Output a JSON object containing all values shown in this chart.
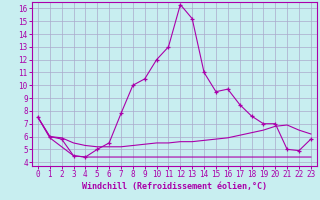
{
  "xlabel": "Windchill (Refroidissement éolien,°C)",
  "background_color": "#c8eef0",
  "grid_color": "#aaaacc",
  "line_color": "#aa00aa",
  "hours": [
    0,
    1,
    2,
    3,
    4,
    5,
    6,
    7,
    8,
    9,
    10,
    11,
    12,
    13,
    14,
    15,
    16,
    17,
    18,
    19,
    20,
    21,
    22,
    23
  ],
  "windchill": [
    7.5,
    6.0,
    5.8,
    4.5,
    4.4,
    5.0,
    5.5,
    7.8,
    10.0,
    10.5,
    12.0,
    13.0,
    16.3,
    15.2,
    11.0,
    9.5,
    9.7,
    8.5,
    7.6,
    7.0,
    7.0,
    5.0,
    4.9,
    5.8
  ],
  "line_flat": [
    7.5,
    5.9,
    5.2,
    4.5,
    4.4,
    4.4,
    4.4,
    4.4,
    4.4,
    4.4,
    4.4,
    4.4,
    4.4,
    4.4,
    4.4,
    4.4,
    4.4,
    4.4,
    4.4,
    4.4,
    4.4,
    4.4,
    4.4,
    4.4
  ],
  "line_mid": [
    7.5,
    6.0,
    5.9,
    5.5,
    5.3,
    5.2,
    5.2,
    5.2,
    5.3,
    5.4,
    5.5,
    5.5,
    5.6,
    5.6,
    5.7,
    5.8,
    5.9,
    6.1,
    6.3,
    6.5,
    6.8,
    6.9,
    6.5,
    6.2
  ],
  "ylim_min": 4,
  "ylim_max": 16,
  "yticks": [
    4,
    5,
    6,
    7,
    8,
    9,
    10,
    11,
    12,
    13,
    14,
    15,
    16
  ],
  "xlim_min": 0,
  "xlim_max": 23
}
